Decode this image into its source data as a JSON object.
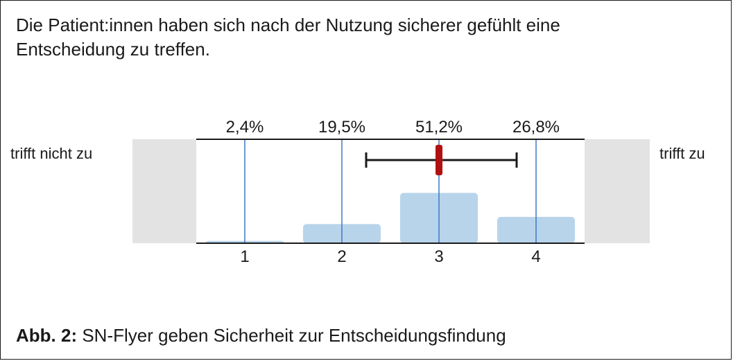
{
  "statement": {
    "line1": "Die Patient:innen haben sich nach der Nutzung sicherer gefühlt eine",
    "line2": "Entscheidung zu treffen."
  },
  "caption": {
    "label": "Abb. 2:",
    "text": "SN-Flyer geben Sicherheit zur Entscheidungsfindung"
  },
  "colors": {
    "bar": "#b8d4ea",
    "gridline": "#3b78c3",
    "side_panel": "#e3e3e3",
    "error_bar": "#1a1a1a",
    "mean_marker": "#b01010"
  },
  "chart_data": {
    "type": "bar",
    "categories": [
      "1",
      "2",
      "3",
      "4"
    ],
    "values": [
      2.4,
      19.5,
      51.2,
      26.8
    ],
    "value_labels": [
      "2,4%",
      "19,5%",
      "51,2%",
      "26,8%"
    ],
    "unit": "%",
    "left_anchor": "trifft nicht zu",
    "right_anchor": "trifft zu",
    "mean": 3.0,
    "error_bar": [
      2.25,
      3.8
    ],
    "ylim": [
      0,
      55
    ],
    "grid": true
  }
}
